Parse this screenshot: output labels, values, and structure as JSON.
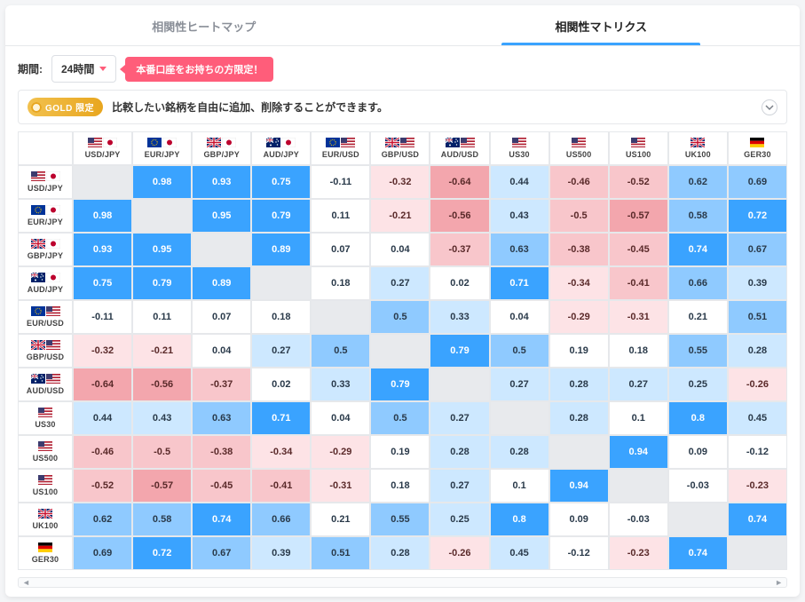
{
  "tabs": {
    "heatmap": "相関性ヒートマップ",
    "matrix": "相関性マトリクス"
  },
  "controls": {
    "period_label": "期間:",
    "period_value": "24時間",
    "live_only": "本番口座をお持ちの方限定！"
  },
  "gold_banner": {
    "chip": "GOLD 限定",
    "text": "比較したい銘柄を自由に追加、削除することができます。"
  },
  "matrix": {
    "symbols": [
      {
        "code": "USD/JPY",
        "flags": [
          "us",
          "jp"
        ]
      },
      {
        "code": "EUR/JPY",
        "flags": [
          "eu",
          "jp"
        ]
      },
      {
        "code": "GBP/JPY",
        "flags": [
          "gb",
          "jp"
        ]
      },
      {
        "code": "AUD/JPY",
        "flags": [
          "au",
          "jp"
        ]
      },
      {
        "code": "EUR/USD",
        "flags": [
          "eu",
          "us"
        ]
      },
      {
        "code": "GBP/USD",
        "flags": [
          "gb",
          "us"
        ]
      },
      {
        "code": "AUD/USD",
        "flags": [
          "au",
          "us"
        ]
      },
      {
        "code": "US30",
        "flags": [
          "us"
        ]
      },
      {
        "code": "US500",
        "flags": [
          "us"
        ]
      },
      {
        "code": "US100",
        "flags": [
          "us"
        ]
      },
      {
        "code": "UK100",
        "flags": [
          "gb"
        ]
      },
      {
        "code": "GER30",
        "flags": [
          "de"
        ]
      }
    ],
    "values": [
      [
        null,
        0.98,
        0.93,
        0.75,
        -0.11,
        -0.32,
        -0.64,
        0.44,
        -0.46,
        -0.52,
        0.62,
        0.69
      ],
      [
        0.98,
        null,
        0.95,
        0.79,
        0.11,
        -0.21,
        -0.56,
        0.43,
        -0.5,
        -0.57,
        0.58,
        0.72
      ],
      [
        0.93,
        0.95,
        null,
        0.89,
        0.07,
        0.04,
        -0.37,
        0.63,
        -0.38,
        -0.45,
        0.74,
        0.67
      ],
      [
        0.75,
        0.79,
        0.89,
        null,
        0.18,
        0.27,
        0.02,
        0.71,
        -0.34,
        -0.41,
        0.66,
        0.39
      ],
      [
        -0.11,
        0.11,
        0.07,
        0.18,
        null,
        0.5,
        0.33,
        0.04,
        -0.29,
        -0.31,
        0.21,
        0.51
      ],
      [
        -0.32,
        -0.21,
        0.04,
        0.27,
        0.5,
        null,
        0.79,
        0.5,
        0.19,
        0.18,
        0.55,
        0.28
      ],
      [
        -0.64,
        -0.56,
        -0.37,
        0.02,
        0.33,
        0.79,
        null,
        0.27,
        0.28,
        0.27,
        0.25,
        -0.26
      ],
      [
        0.44,
        0.43,
        0.63,
        0.71,
        0.04,
        0.5,
        0.27,
        null,
        0.28,
        0.1,
        0.8,
        0.45
      ],
      [
        -0.46,
        -0.5,
        -0.38,
        -0.34,
        -0.29,
        0.19,
        0.28,
        0.28,
        null,
        0.94,
        0.09,
        -0.12
      ],
      [
        -0.52,
        -0.57,
        -0.45,
        -0.41,
        -0.31,
        0.18,
        0.27,
        0.1,
        0.94,
        null,
        -0.03,
        -0.23
      ],
      [
        0.62,
        0.58,
        0.74,
        0.66,
        0.21,
        0.55,
        0.25,
        0.8,
        0.09,
        -0.03,
        null,
        0.74
      ],
      [
        0.69,
        0.72,
        0.67,
        0.39,
        0.51,
        0.28,
        -0.26,
        0.45,
        -0.12,
        -0.23,
        0.74,
        null
      ]
    ],
    "color_scale": {
      "pos": [
        {
          "t": 0.7,
          "bg": "#3aa3ff",
          "fg": "#ffffff"
        },
        {
          "t": 0.5,
          "bg": "#8fcaff",
          "fg": "#2a3a4a"
        },
        {
          "t": 0.25,
          "bg": "#cde8ff",
          "fg": "#2a3a4a"
        },
        {
          "t": 0.0,
          "bg": "#ffffff",
          "fg": "#2a3a4a"
        }
      ],
      "neg": [
        {
          "t": 0.55,
          "bg": "#f3a6ad",
          "fg": "#5a2a2a"
        },
        {
          "t": 0.35,
          "bg": "#f8c6cb",
          "fg": "#5a2a2a"
        },
        {
          "t": 0.15,
          "bg": "#fde3e6",
          "fg": "#5a2a2a"
        },
        {
          "t": 0.0,
          "bg": "#ffffff",
          "fg": "#2a3a4a"
        }
      ],
      "diag": "#e8eaed"
    }
  }
}
